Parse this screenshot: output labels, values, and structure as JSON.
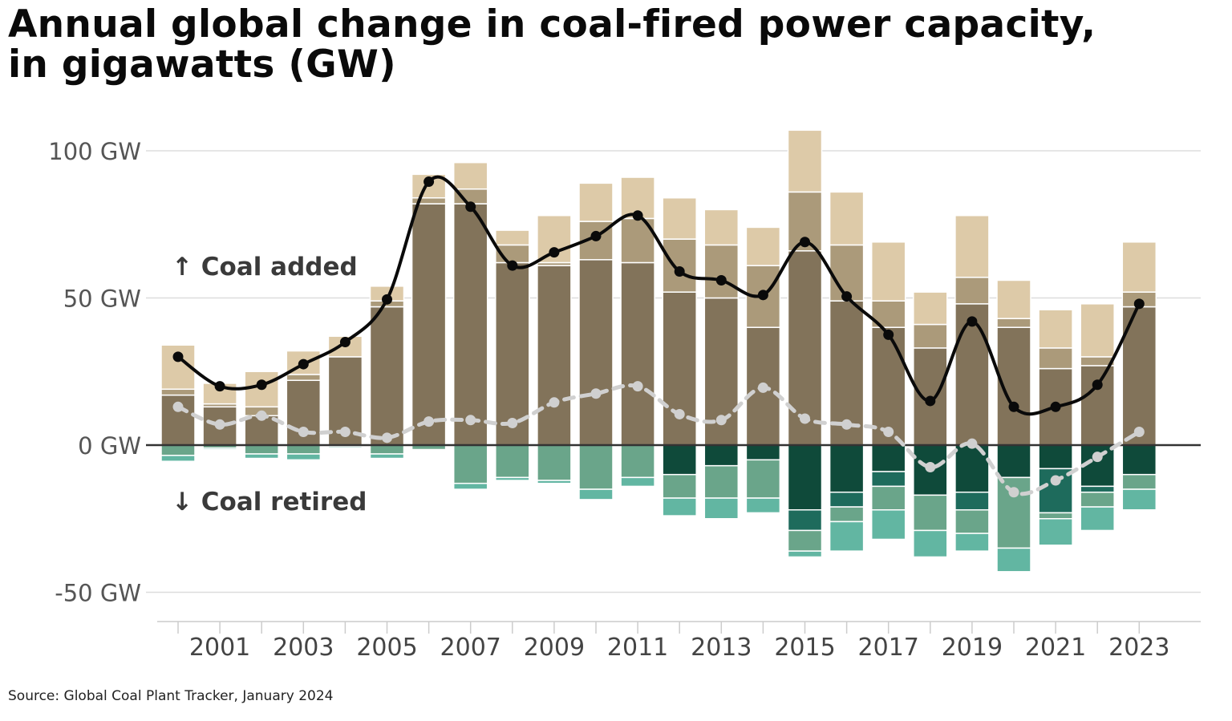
{
  "title_line1": "Annual global change in coal-fired power capacity,",
  "title_line2": "in gigawatts (GW)",
  "source": "Source: Global Coal Plant Tracker, January 2024",
  "annotations": {
    "added": "↑ Coal added",
    "retired": "↓ Coal retired"
  },
  "colors": {
    "added": [
      "#82735a",
      "#ab9a7a",
      "#ddcaa8"
    ],
    "retired": [
      "#0f4a3a",
      "#1e6b5c",
      "#6aa58a",
      "#62b6a2"
    ],
    "net_line": "#0a0a0a",
    "retired_line": "#d0d0d0",
    "zero_line": "#333333",
    "grid": "#dddddd"
  },
  "chart_data": {
    "type": "bar",
    "ylim": [
      -58,
      108
    ],
    "yticks": [
      {
        "v": 100,
        "label": "100 GW"
      },
      {
        "v": 50,
        "label": "50 GW"
      },
      {
        "v": 0,
        "label": "0 GW"
      },
      {
        "v": -50,
        "label": "-50 GW"
      }
    ],
    "xtick_labels": [
      "2001",
      "2003",
      "2005",
      "2007",
      "2009",
      "2011",
      "2013",
      "2015",
      "2017",
      "2019",
      "2021",
      "2023"
    ],
    "grid": true,
    "categories": [
      "2000",
      "2001",
      "2002",
      "2003",
      "2004",
      "2005",
      "2006",
      "2007",
      "2008",
      "2009",
      "2010",
      "2011",
      "2012",
      "2013",
      "2014",
      "2015",
      "2016",
      "2017",
      "2018",
      "2019",
      "2020",
      "2021",
      "2022",
      "2023"
    ],
    "added_segments": [
      [
        17,
        2,
        15
      ],
      [
        13,
        1,
        7
      ],
      [
        10,
        3,
        12
      ],
      [
        22,
        2,
        8
      ],
      [
        30,
        0,
        7
      ],
      [
        47,
        2,
        5
      ],
      [
        82,
        2,
        8
      ],
      [
        82,
        5,
        9
      ],
      [
        62,
        6,
        5
      ],
      [
        61,
        1,
        16
      ],
      [
        63,
        13,
        13
      ],
      [
        62,
        15,
        14
      ],
      [
        52,
        18,
        14
      ],
      [
        50,
        18,
        12
      ],
      [
        40,
        21,
        13
      ],
      [
        66,
        20,
        21
      ],
      [
        49,
        19,
        18
      ],
      [
        40,
        9,
        20
      ],
      [
        33,
        8,
        11
      ],
      [
        48,
        9,
        21
      ],
      [
        40,
        3,
        13
      ],
      [
        26,
        7,
        13
      ],
      [
        27,
        3,
        18
      ],
      [
        47,
        5,
        17
      ]
    ],
    "retired_segments": [
      [
        0,
        0,
        3.5,
        2
      ],
      [
        0,
        0,
        1,
        0.5
      ],
      [
        0,
        0,
        3,
        1.5
      ],
      [
        0,
        0,
        3,
        2
      ],
      [
        0,
        0,
        0.5,
        0.5
      ],
      [
        0,
        0,
        3,
        1.5
      ],
      [
        0,
        0,
        1.5,
        0
      ],
      [
        0,
        0,
        13,
        2
      ],
      [
        0,
        0,
        11,
        1
      ],
      [
        0,
        0,
        12,
        1
      ],
      [
        0,
        0,
        15,
        3.5
      ],
      [
        0,
        0,
        11,
        3
      ],
      [
        10,
        0,
        8,
        6
      ],
      [
        7,
        0,
        11,
        7
      ],
      [
        5,
        0,
        13,
        5
      ],
      [
        22,
        7,
        7,
        2
      ],
      [
        16,
        5,
        5,
        10
      ],
      [
        9,
        5,
        8,
        10
      ],
      [
        17,
        0,
        12,
        9
      ],
      [
        16,
        6,
        8,
        6
      ],
      [
        11,
        0,
        24,
        8
      ],
      [
        8,
        15,
        2,
        9
      ],
      [
        14,
        2,
        5,
        8
      ],
      [
        10,
        0,
        5,
        7
      ]
    ],
    "series": [
      {
        "name": "Coal added",
        "values": [
          34,
          21,
          25,
          32,
          37,
          54,
          92,
          96,
          73,
          78,
          89,
          91,
          84,
          80,
          74,
          107,
          86,
          69,
          52,
          78,
          56,
          46,
          48,
          69
        ]
      },
      {
        "name": "Coal retired",
        "values": [
          -5.5,
          -1.5,
          -4.5,
          -5,
          -1,
          -4.5,
          -1.5,
          -15,
          -12,
          -13,
          -18.5,
          -14,
          -24,
          -25,
          -23,
          -38,
          -36,
          -32,
          -38,
          -36,
          -43,
          -34,
          -29,
          -22
        ]
      },
      {
        "name": "Net change",
        "values": [
          30,
          20,
          20.5,
          27.5,
          35,
          49.5,
          89.5,
          81,
          61,
          65.5,
          71,
          78,
          59,
          56,
          51,
          69,
          50.5,
          37.5,
          15,
          42,
          13,
          13,
          20.5,
          48
        ]
      },
      {
        "name": "Net change (retirement adjusted)",
        "values": [
          13,
          7,
          10,
          4.5,
          4.5,
          2.5,
          8,
          8.5,
          7.5,
          14.5,
          17.5,
          20,
          10.5,
          8.5,
          19.5,
          9,
          7,
          4.5,
          -7.5,
          0.5,
          -16,
          -12,
          -4,
          4.5
        ]
      }
    ]
  }
}
